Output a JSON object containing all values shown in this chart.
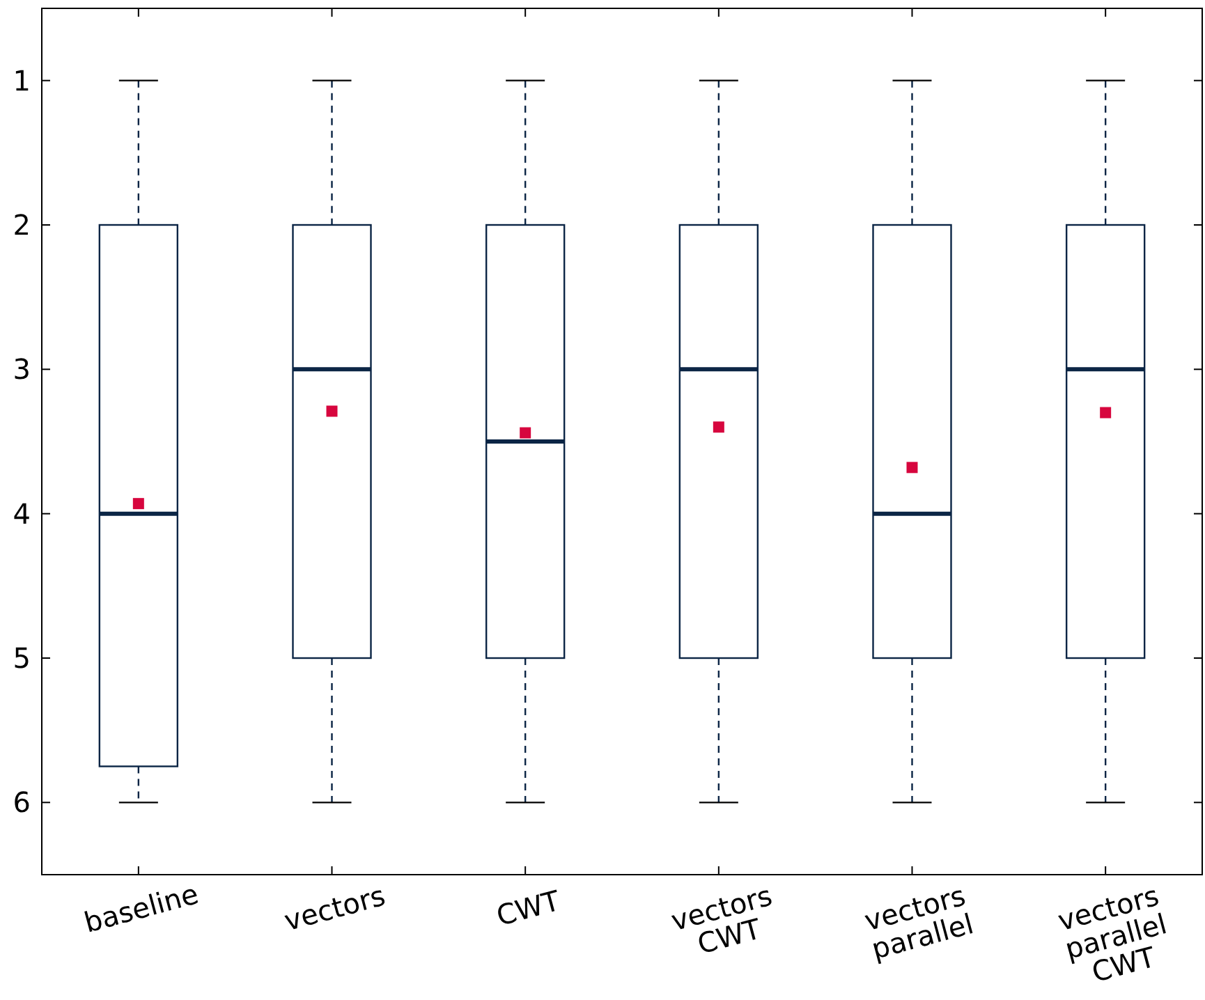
{
  "chart_data": {
    "type": "box",
    "categories": [
      "baseline",
      "vectors",
      "CWT",
      "vectors\nCWT",
      "vectors\nparallel",
      "vectors\nparallel\nCWT"
    ],
    "ylim": [
      6.5,
      0.5
    ],
    "yticks": [
      1,
      2,
      3,
      4,
      5,
      6
    ],
    "grid": false,
    "series": [
      {
        "color": "#0b2545",
        "boxes": [
          {
            "low": 1,
            "q1": 2,
            "median": 4,
            "q3": 5.75,
            "high": 6
          },
          {
            "low": 1,
            "q1": 2,
            "median": 3,
            "q3": 5,
            "high": 6
          },
          {
            "low": 1,
            "q1": 2,
            "median": 3.5,
            "q3": 5,
            "high": 6
          },
          {
            "low": 1,
            "q1": 2,
            "median": 3,
            "q3": 5,
            "high": 6
          },
          {
            "low": 1,
            "q1": 2,
            "median": 4,
            "q3": 5,
            "high": 6
          },
          {
            "low": 1,
            "q1": 2,
            "median": 3,
            "q3": 5,
            "high": 6
          }
        ]
      },
      {
        "type": "scatter",
        "color": "#d7063e",
        "marker": "square",
        "x": [
          "baseline",
          "vectors",
          "CWT",
          "vectors\nCWT",
          "vectors\nparallel",
          "vectors\nparallel\nCWT"
        ],
        "values": [
          3.93,
          3.29,
          3.44,
          3.4,
          3.68,
          3.3
        ]
      }
    ]
  }
}
